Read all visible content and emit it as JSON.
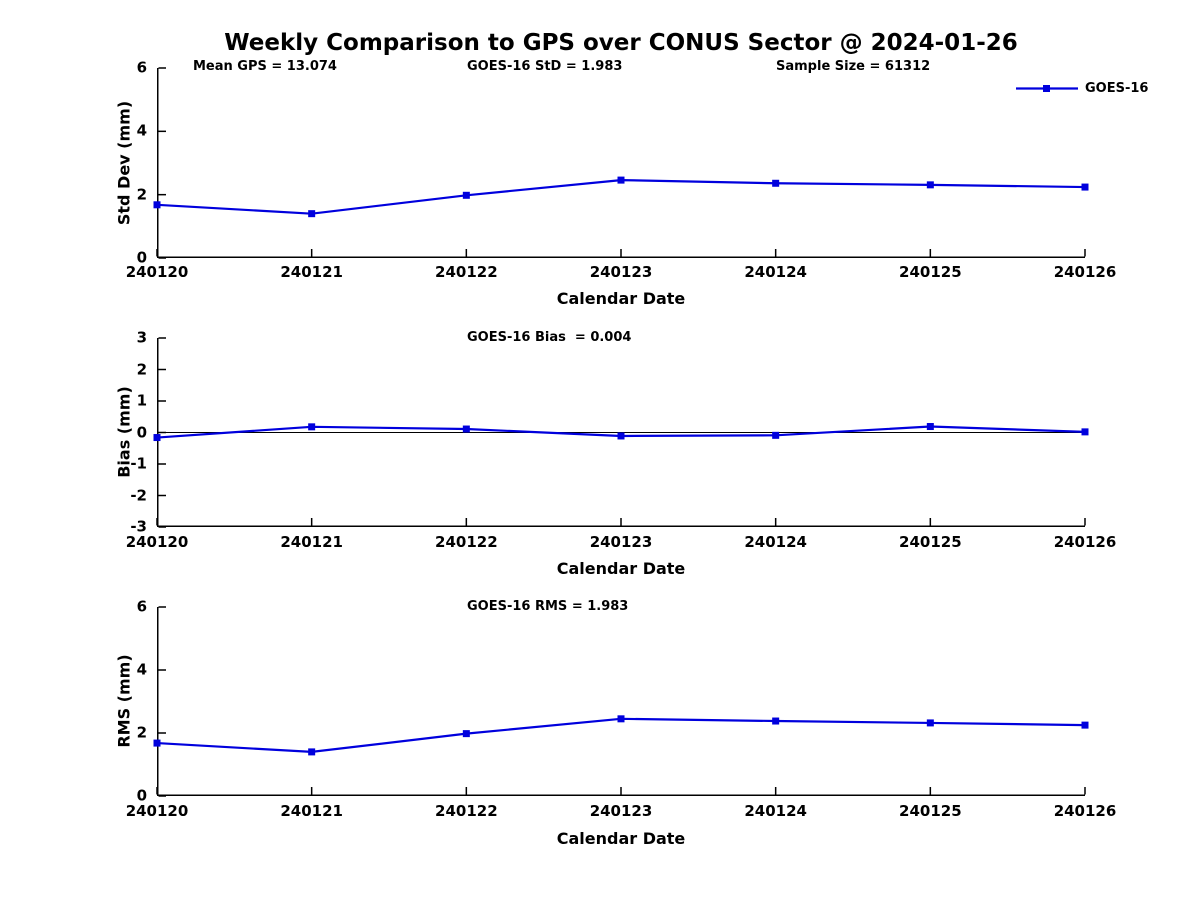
{
  "title": "Weekly Comparison to GPS over CONUS Sector @ 2024-01-26",
  "legend": {
    "label": "GOES-16",
    "color": "#0000dd",
    "marker": "square"
  },
  "axis_color": "#000000",
  "chart_data": [
    {
      "type": "line",
      "subplot": "std-dev",
      "annotations": [
        {
          "name": "mean-gps",
          "text": "Mean GPS = 13.074"
        },
        {
          "name": "goes16-std",
          "text": "GOES-16 StD = 1.983"
        },
        {
          "name": "sample-size",
          "text": "Sample Size = 61312"
        }
      ],
      "categories": [
        "240120",
        "240121",
        "240122",
        "240123",
        "240124",
        "240125",
        "240126"
      ],
      "series": [
        {
          "name": "GOES-16",
          "values": [
            1.68,
            1.4,
            1.98,
            2.46,
            2.36,
            2.31,
            2.24
          ]
        }
      ],
      "xlabel": "Calendar Date",
      "ylabel": "Std Dev (mm)",
      "ylim": [
        0,
        6
      ],
      "yticks": [
        0,
        2,
        4,
        6
      ],
      "zero_line": false,
      "grid": false,
      "legend_position": "top-right-inside",
      "legend_visible": true
    },
    {
      "type": "line",
      "subplot": "bias",
      "annotations": [
        {
          "name": "goes16-bias",
          "text": "GOES-16 Bias  = 0.004"
        }
      ],
      "categories": [
        "240120",
        "240121",
        "240122",
        "240123",
        "240124",
        "240125",
        "240126"
      ],
      "series": [
        {
          "name": "GOES-16",
          "values": [
            -0.16,
            0.18,
            0.11,
            -0.11,
            -0.09,
            0.19,
            0.02
          ]
        }
      ],
      "xlabel": "Calendar Date",
      "ylabel": "Bias (mm)",
      "ylim": [
        -3,
        3
      ],
      "yticks": [
        3,
        2,
        1,
        0,
        -1,
        -2,
        -3
      ],
      "zero_line": true,
      "grid": false,
      "legend_visible": false
    },
    {
      "type": "line",
      "subplot": "rms",
      "annotations": [
        {
          "name": "goes16-rms",
          "text": "GOES-16 RMS = 1.983"
        }
      ],
      "categories": [
        "240120",
        "240121",
        "240122",
        "240123",
        "240124",
        "240125",
        "240126"
      ],
      "series": [
        {
          "name": "GOES-16",
          "values": [
            1.68,
            1.4,
            1.98,
            2.45,
            2.38,
            2.32,
            2.25
          ]
        }
      ],
      "xlabel": "Calendar Date",
      "ylabel": "RMS (mm)",
      "ylim": [
        0,
        6
      ],
      "yticks": [
        0,
        2,
        4,
        6
      ],
      "zero_line": false,
      "grid": false,
      "legend_visible": false
    }
  ]
}
